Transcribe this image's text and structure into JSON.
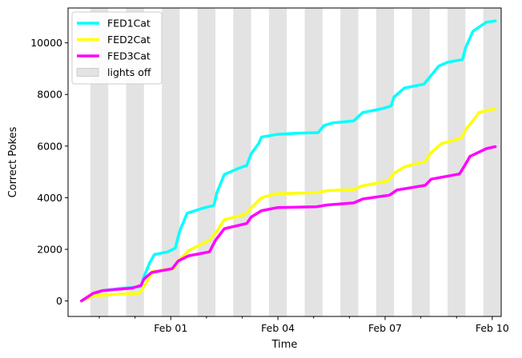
{
  "chart_data": {
    "type": "line",
    "title": "",
    "xlabel": "Time",
    "ylabel": "Correct Pokes",
    "xlim": [
      "2021-01-29 03:00",
      "2021-02-10 06:00"
    ],
    "ylim": [
      -600,
      11350
    ],
    "x_ticks": [
      {
        "label": "Feb 01",
        "date": "2021-02-01"
      },
      {
        "label": "Feb 04",
        "date": "2021-02-04"
      },
      {
        "label": "Feb 07",
        "date": "2021-02-07"
      },
      {
        "label": "Feb 10",
        "date": "2021-02-10"
      }
    ],
    "x_minor_ticks": [
      "2021-01-30",
      "2021-01-31",
      "2021-02-02",
      "2021-02-03",
      "2021-02-05",
      "2021-02-06",
      "2021-02-08",
      "2021-02-09"
    ],
    "y_ticks": [
      0,
      2000,
      4000,
      6000,
      8000,
      10000
    ],
    "lights_off": [
      [
        "2021-01-29 18:00",
        "2021-01-30 06:00"
      ],
      [
        "2021-01-30 18:00",
        "2021-01-31 06:00"
      ],
      [
        "2021-01-31 18:00",
        "2021-02-01 06:00"
      ],
      [
        "2021-02-01 18:00",
        "2021-02-02 06:00"
      ],
      [
        "2021-02-02 18:00",
        "2021-02-03 06:00"
      ],
      [
        "2021-02-03 18:00",
        "2021-02-04 06:00"
      ],
      [
        "2021-02-04 18:00",
        "2021-02-05 06:00"
      ],
      [
        "2021-02-05 18:00",
        "2021-02-06 06:00"
      ],
      [
        "2021-02-06 18:00",
        "2021-02-07 06:00"
      ],
      [
        "2021-02-07 18:00",
        "2021-02-08 06:00"
      ],
      [
        "2021-02-08 18:00",
        "2021-02-09 06:00"
      ],
      [
        "2021-02-09 18:00",
        "2021-02-10 06:00"
      ]
    ],
    "legend": {
      "position": "top-left",
      "entries": [
        {
          "label": "FED1Cat",
          "color": "#00ffff",
          "kind": "line"
        },
        {
          "label": "FED2Cat",
          "color": "#ffff00",
          "kind": "line"
        },
        {
          "label": "FED3Cat",
          "color": "#ff00ff",
          "kind": "line"
        },
        {
          "label": "lights off",
          "color": "#e3e3e3",
          "kind": "patch"
        }
      ]
    },
    "series": [
      {
        "name": "FED1Cat",
        "color": "#00ffff",
        "points": [
          [
            "2021-01-29 12:00",
            0
          ],
          [
            "2021-01-29 20:00",
            250
          ],
          [
            "2021-01-30 02:00",
            400
          ],
          [
            "2021-01-30 12:00",
            470
          ],
          [
            "2021-01-30 22:00",
            520
          ],
          [
            "2021-01-31 04:00",
            560
          ],
          [
            "2021-01-31 06:00",
            950
          ],
          [
            "2021-01-31 10:00",
            1500
          ],
          [
            "2021-01-31 13:00",
            1800
          ],
          [
            "2021-01-31 22:00",
            1900
          ],
          [
            "2021-02-01 03:00",
            2050
          ],
          [
            "2021-02-01 06:00",
            2700
          ],
          [
            "2021-02-01 11:00",
            3400
          ],
          [
            "2021-02-01 22:00",
            3600
          ],
          [
            "2021-02-02 05:00",
            3700
          ],
          [
            "2021-02-02 07:00",
            4200
          ],
          [
            "2021-02-02 12:00",
            4900
          ],
          [
            "2021-02-02 22:00",
            5150
          ],
          [
            "2021-02-03 03:00",
            5250
          ],
          [
            "2021-02-03 06:00",
            5700
          ],
          [
            "2021-02-03 11:00",
            6100
          ],
          [
            "2021-02-03 13:00",
            6350
          ],
          [
            "2021-02-03 23:00",
            6450
          ],
          [
            "2021-02-04 12:00",
            6500
          ],
          [
            "2021-02-05 03:00",
            6520
          ],
          [
            "2021-02-05 07:00",
            6800
          ],
          [
            "2021-02-05 13:00",
            6900
          ],
          [
            "2021-02-06 03:00",
            6980
          ],
          [
            "2021-02-06 09:00",
            7300
          ],
          [
            "2021-02-06 22:00",
            7450
          ],
          [
            "2021-02-07 04:00",
            7550
          ],
          [
            "2021-02-07 06:00",
            7900
          ],
          [
            "2021-02-07 13:00",
            8250
          ],
          [
            "2021-02-08 02:00",
            8400
          ],
          [
            "2021-02-08 05:00",
            8600
          ],
          [
            "2021-02-08 12:00",
            9100
          ],
          [
            "2021-02-08 18:00",
            9250
          ],
          [
            "2021-02-09 04:00",
            9350
          ],
          [
            "2021-02-09 06:00",
            9800
          ],
          [
            "2021-02-09 11:00",
            10450
          ],
          [
            "2021-02-09 20:00",
            10800
          ],
          [
            "2021-02-10 02:00",
            10850
          ]
        ]
      },
      {
        "name": "FED2Cat",
        "color": "#ffff00",
        "points": [
          [
            "2021-01-29 12:00",
            0
          ],
          [
            "2021-01-29 20:00",
            200
          ],
          [
            "2021-01-30 10:00",
            250
          ],
          [
            "2021-01-31 03:00",
            300
          ],
          [
            "2021-01-31 07:00",
            650
          ],
          [
            "2021-01-31 12:00",
            1150
          ],
          [
            "2021-02-01 02:00",
            1250
          ],
          [
            "2021-02-01 05:00",
            1550
          ],
          [
            "2021-02-01 12:00",
            1950
          ],
          [
            "2021-02-02 02:00",
            2350
          ],
          [
            "2021-02-02 07:00",
            2700
          ],
          [
            "2021-02-02 12:00",
            3150
          ],
          [
            "2021-02-03 02:00",
            3350
          ],
          [
            "2021-02-03 06:00",
            3600
          ],
          [
            "2021-02-03 13:00",
            4000
          ],
          [
            "2021-02-03 22:00",
            4150
          ],
          [
            "2021-02-05 02:00",
            4200
          ],
          [
            "2021-02-05 10:00",
            4280
          ],
          [
            "2021-02-06 03:00",
            4310
          ],
          [
            "2021-02-06 08:00",
            4450
          ],
          [
            "2021-02-07 02:00",
            4650
          ],
          [
            "2021-02-07 06:00",
            4950
          ],
          [
            "2021-02-07 13:00",
            5200
          ],
          [
            "2021-02-08 03:00",
            5400
          ],
          [
            "2021-02-08 07:00",
            5750
          ],
          [
            "2021-02-08 14:00",
            6100
          ],
          [
            "2021-02-09 03:00",
            6300
          ],
          [
            "2021-02-09 07:00",
            6700
          ],
          [
            "2021-02-09 12:00",
            7050
          ],
          [
            "2021-02-09 15:00",
            7300
          ],
          [
            "2021-02-10 02:00",
            7450
          ]
        ]
      },
      {
        "name": "FED3Cat",
        "color": "#ff00ff",
        "points": [
          [
            "2021-01-29 12:00",
            0
          ],
          [
            "2021-01-29 20:00",
            300
          ],
          [
            "2021-01-30 02:00",
            400
          ],
          [
            "2021-01-30 12:00",
            450
          ],
          [
            "2021-01-30 22:00",
            500
          ],
          [
            "2021-01-31 04:00",
            600
          ],
          [
            "2021-01-31 06:00",
            850
          ],
          [
            "2021-01-31 11:00",
            1100
          ],
          [
            "2021-02-01 01:00",
            1250
          ],
          [
            "2021-02-01 05:00",
            1550
          ],
          [
            "2021-02-01 12:00",
            1750
          ],
          [
            "2021-02-02 02:00",
            1900
          ],
          [
            "2021-02-02 06:00",
            2350
          ],
          [
            "2021-02-02 12:00",
            2800
          ],
          [
            "2021-02-03 03:00",
            3000
          ],
          [
            "2021-02-03 06:00",
            3250
          ],
          [
            "2021-02-03 13:00",
            3500
          ],
          [
            "2021-02-04 00:00",
            3620
          ],
          [
            "2021-02-05 02:00",
            3650
          ],
          [
            "2021-02-05 09:00",
            3720
          ],
          [
            "2021-02-06 03:00",
            3800
          ],
          [
            "2021-02-06 09:00",
            3950
          ],
          [
            "2021-02-07 03:00",
            4100
          ],
          [
            "2021-02-07 08:00",
            4300
          ],
          [
            "2021-02-08 03:00",
            4480
          ],
          [
            "2021-02-08 07:00",
            4720
          ],
          [
            "2021-02-09 02:00",
            4920
          ],
          [
            "2021-02-09 05:00",
            5200
          ],
          [
            "2021-02-09 09:00",
            5600
          ],
          [
            "2021-02-09 20:00",
            5900
          ],
          [
            "2021-02-10 02:00",
            5980
          ]
        ]
      }
    ]
  }
}
